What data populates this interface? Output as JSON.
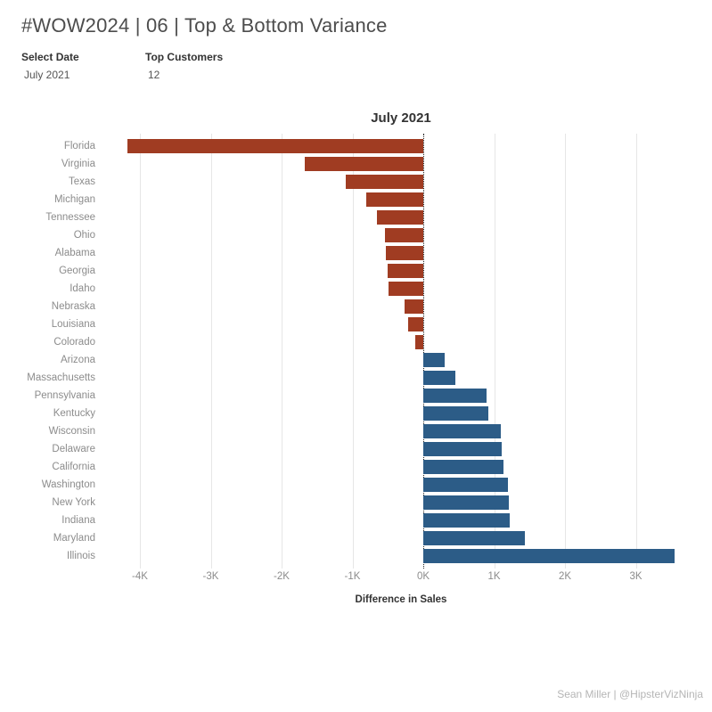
{
  "header": {
    "title": "#WOW2024 | 06 | Top & Bottom Variance"
  },
  "filters": [
    {
      "label": "Select Date",
      "value": "July 2021"
    },
    {
      "label": "Top Customers",
      "value": "12"
    }
  ],
  "chart_data": {
    "type": "bar",
    "orientation": "horizontal",
    "title": "July 2021",
    "xlabel": "Difference in Sales",
    "categories": [
      "Florida",
      "Virginia",
      "Texas",
      "Michigan",
      "Tennessee",
      "Ohio",
      "Alabama",
      "Georgia",
      "Idaho",
      "Nebraska",
      "Louisiana",
      "Colorado",
      "Arizona",
      "Massachusetts",
      "Pennsylvania",
      "Kentucky",
      "Wisconsin",
      "Delaware",
      "California",
      "Washington",
      "New York",
      "Indiana",
      "Maryland",
      "Illinois"
    ],
    "values": [
      -4176,
      -1670,
      -1090,
      -805,
      -658,
      -545,
      -525,
      -503,
      -494,
      -264,
      -214,
      -113,
      306,
      449,
      893,
      922,
      1098,
      1110,
      1132,
      1195,
      1208,
      1215,
      1434,
      3551
    ],
    "xlim": [
      -4466,
      3837
    ],
    "xticks": [
      {
        "value": -4000,
        "label": "-4K"
      },
      {
        "value": -3000,
        "label": "-3K"
      },
      {
        "value": -2000,
        "label": "-2K"
      },
      {
        "value": -1000,
        "label": "-1K"
      },
      {
        "value": 0,
        "label": "0K"
      },
      {
        "value": 1000,
        "label": "1K"
      },
      {
        "value": 2000,
        "label": "2K"
      },
      {
        "value": 3000,
        "label": "3K"
      }
    ],
    "grid": true,
    "zero_line": "dotted",
    "legend": "none",
    "colors": {
      "negative": "#A03C22",
      "positive": "#2C5C87"
    }
  },
  "footer": {
    "credit": "Sean Miller | @HipsterVizNinja"
  }
}
